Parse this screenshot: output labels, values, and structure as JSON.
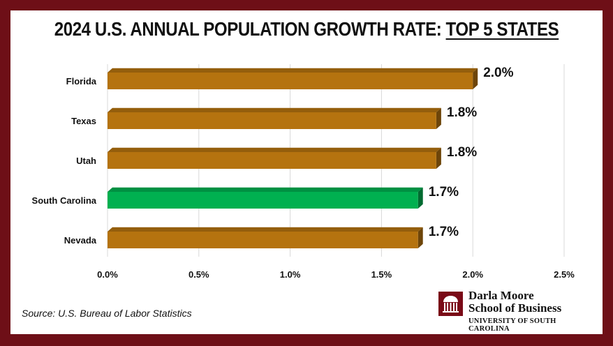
{
  "header": {
    "title_main": "2024 U.S. ANNUAL POPULATION GROWTH RATE: ",
    "title_highlight": "TOP 5 STATES"
  },
  "chart_data": {
    "type": "bar",
    "orientation": "horizontal",
    "title": "2024 U.S. ANNUAL POPULATION GROWTH RATE: TOP 5 STATES",
    "categories": [
      "Florida",
      "Texas",
      "Utah",
      "South Carolina",
      "Nevada"
    ],
    "values": [
      2.0,
      1.8,
      1.8,
      1.7,
      1.7
    ],
    "value_labels": [
      "2.0%",
      "1.8%",
      "1.8%",
      "1.7%",
      "1.7%"
    ],
    "bar_colors": [
      "#b5730f",
      "#b5730f",
      "#b5730f",
      "#00b050",
      "#b5730f"
    ],
    "xlim": [
      0,
      2.5
    ],
    "xticks": [
      0,
      0.5,
      1.0,
      1.5,
      2.0,
      2.5
    ],
    "xtick_labels": [
      "0.0%",
      "0.5%",
      "1.0%",
      "1.5%",
      "2.0%",
      "2.5%"
    ],
    "xlabel": "",
    "ylabel": "",
    "grid": true,
    "legend": "none"
  },
  "footer": {
    "source": "Source: U.S. Bureau of Labor Statistics",
    "logo_line1": "Darla Moore",
    "logo_line2": "School of Business",
    "logo_line3": "UNIVERSITY OF SOUTH CAROLINA"
  },
  "colors": {
    "frame": "#6e0f17",
    "bar": "#b5730f",
    "highlight_bar": "#00b050",
    "grid": "#d9d9d9"
  }
}
